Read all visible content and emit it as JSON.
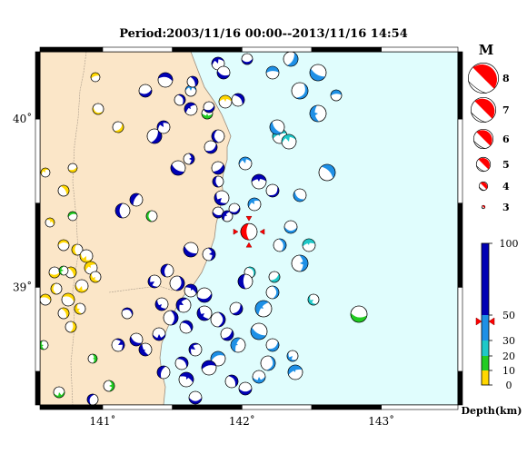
{
  "title": "Period:2003/11/16 00:00--2013/11/16 14:54",
  "map": {
    "lat_ticks": [
      {
        "label": "40˚",
        "value": 40
      },
      {
        "label": "39˚",
        "value": 39
      }
    ],
    "lon_ticks": [
      {
        "label": "141˚",
        "value": 141
      },
      {
        "label": "142˚",
        "value": 142
      },
      {
        "label": "143˚",
        "value": 143
      }
    ],
    "extent": {
      "lon": [
        140.55,
        143.55
      ],
      "lat": [
        38.3,
        40.4
      ]
    },
    "colors": {
      "land": "#fbe6c8",
      "sea": "#e0fdfd",
      "highlight": "#ff0000"
    }
  },
  "magnitude_legend": {
    "header": "M",
    "entries": [
      {
        "label": "8",
        "mag": 8
      },
      {
        "label": "7",
        "mag": 7
      },
      {
        "label": "6",
        "mag": 6
      },
      {
        "label": "5",
        "mag": 5
      },
      {
        "label": "4",
        "mag": 4
      },
      {
        "label": "3",
        "mag": 3
      }
    ]
  },
  "depth_scale": {
    "label": "Depth(km)",
    "ticks": [
      {
        "label": "100",
        "value": 100
      },
      {
        "label": "50",
        "value": 50
      },
      {
        "label": "30",
        "value": 30
      },
      {
        "label": "20",
        "value": 20
      },
      {
        "label": "10",
        "value": 10
      },
      {
        "label": "0",
        "value": 0
      }
    ],
    "bands": [
      {
        "from": 0,
        "to": 10,
        "color": "#ffd700"
      },
      {
        "from": 10,
        "to": 20,
        "color": "#22cc22"
      },
      {
        "from": 20,
        "to": 30,
        "color": "#1ec8c8"
      },
      {
        "from": 30,
        "to": 50,
        "color": "#1e90e6"
      },
      {
        "from": 50,
        "to": 100,
        "color": "#0000b4"
      }
    ],
    "marker_depth": 45
  },
  "highlight_event": {
    "lon": 142.05,
    "lat": 39.33,
    "mag": 5.2
  }
}
